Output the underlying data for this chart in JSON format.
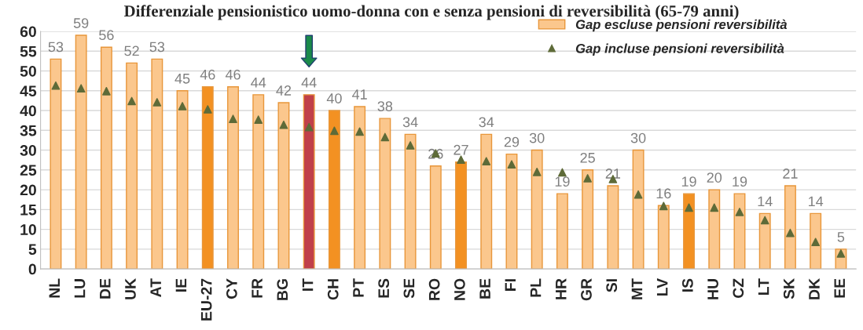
{
  "chart_data": {
    "type": "bar",
    "title": "Differenziale pensionistico uomo-donna con e senza pensioni di reversibilità (65-79 anni)",
    "categories": [
      "NL",
      "LU",
      "DE",
      "UK",
      "AT",
      "IE",
      "EU-27",
      "CY",
      "FR",
      "BG",
      "IT",
      "CH",
      "PT",
      "ES",
      "SE",
      "RO",
      "NO",
      "BE",
      "FI",
      "PL",
      "HR",
      "GR",
      "SI",
      "MT",
      "LV",
      "IS",
      "HU",
      "CZ",
      "LT",
      "SK",
      "DK",
      "EE"
    ],
    "series": [
      {
        "name": "Gap escluse pensioni reversibilità",
        "color": "#fbc78d",
        "colors": [
          "#fbc78d",
          "#fbc78d",
          "#fbc78d",
          "#fbc78d",
          "#fbc78d",
          "#fbc78d",
          "#f39122",
          "#fbc78d",
          "#fbc78d",
          "#fbc78d",
          "#c0404a",
          "#f39122",
          "#fbc78d",
          "#fbc78d",
          "#fbc78d",
          "#fbc78d",
          "#f39122",
          "#fbc78d",
          "#fbc78d",
          "#fbc78d",
          "#fbc78d",
          "#fbc78d",
          "#fbc78d",
          "#fbc78d",
          "#fbc78d",
          "#f39122",
          "#fbc78d",
          "#fbc78d",
          "#fbc78d",
          "#fbc78d",
          "#fbc78d",
          "#fbc78d"
        ],
        "values": [
          53,
          59,
          56,
          52,
          53,
          45,
          46,
          46,
          44,
          42,
          44,
          40,
          41,
          38,
          34,
          26,
          27,
          34,
          29,
          30,
          19,
          25,
          21,
          30,
          16,
          19,
          20,
          19,
          14,
          21,
          14,
          5
        ],
        "value_labels": [
          "53",
          "59",
          "56",
          "52",
          "53",
          "45",
          "46",
          "46",
          "44",
          "42",
          "44",
          "40",
          "41",
          "38",
          "34",
          "26",
          "27",
          "34",
          "29",
          "30",
          "19",
          "25",
          "21",
          "30",
          "16",
          "19",
          "20",
          "19",
          "14",
          "21",
          "14",
          "5"
        ]
      },
      {
        "name": "Gap incluse pensioni reversibilità",
        "type": "scatter",
        "color": "#5e6b38",
        "marker": "triangle",
        "values": [
          46.3,
          45.6,
          44.9,
          42.4,
          42.1,
          41.1,
          40.3,
          37.9,
          37.7,
          36.4,
          35.8,
          34.9,
          34.7,
          33.3,
          31.2,
          29.2,
          27.6,
          27.2,
          26.4,
          24.5,
          24.4,
          22.9,
          22.7,
          18.8,
          15.9,
          15.5,
          15.5,
          14.4,
          12.3,
          9.1,
          6.8,
          3.9
        ]
      }
    ],
    "ylim": [
      0,
      60
    ],
    "yticks": [
      0,
      5,
      10,
      15,
      20,
      25,
      30,
      35,
      40,
      45,
      50,
      55,
      60
    ],
    "grid": "y",
    "legend": "top right"
  }
}
